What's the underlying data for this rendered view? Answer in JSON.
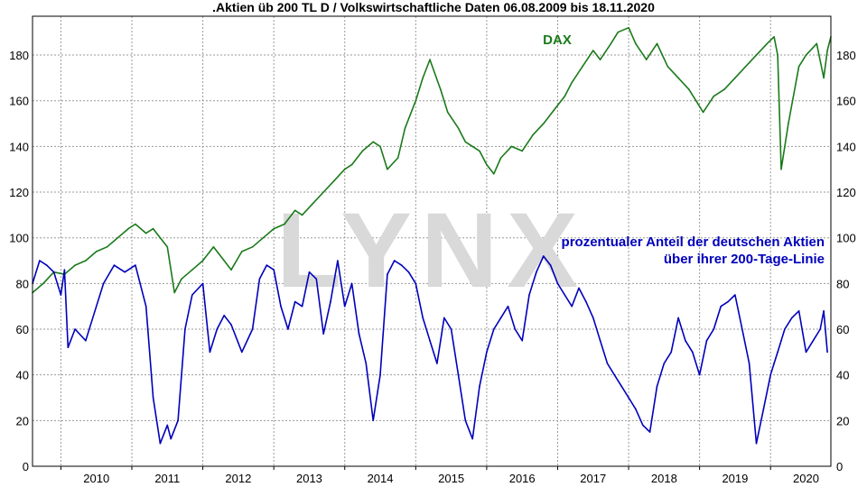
{
  "chart_data": {
    "type": "line",
    "title": ".Aktien üb 200 TL D / Volkswirtschaftliche Daten 06.08.2009 bis 18.11.2020",
    "xlabel": "",
    "ylabel": "",
    "xlim": [
      2009.6,
      2020.85
    ],
    "ylim": [
      0,
      197
    ],
    "grid": true,
    "watermark": "LYNX",
    "y_ticks": [
      0,
      20,
      40,
      60,
      80,
      100,
      120,
      140,
      160,
      180
    ],
    "x_ticks": [
      2010,
      2011,
      2012,
      2013,
      2014,
      2015,
      2016,
      2017,
      2018,
      2019,
      2020
    ],
    "colors": {
      "dax": "#1a7a1a",
      "share": "#0000bb",
      "grid": "#9a9a9a",
      "watermark": "#d9d9d9"
    },
    "series": [
      {
        "name": "DAX",
        "label": "DAX",
        "x": [
          2009.6,
          2009.75,
          2009.9,
          2010.05,
          2010.2,
          2010.35,
          2010.5,
          2010.65,
          2010.8,
          2010.95,
          2011.05,
          2011.2,
          2011.3,
          2011.4,
          2011.5,
          2011.6,
          2011.7,
          2011.85,
          2012.0,
          2012.15,
          2012.3,
          2012.4,
          2012.55,
          2012.7,
          2012.85,
          2013.0,
          2013.15,
          2013.3,
          2013.4,
          2013.55,
          2013.7,
          2013.85,
          2014.0,
          2014.1,
          2014.25,
          2014.4,
          2014.5,
          2014.6,
          2014.75,
          2014.85,
          2015.0,
          2015.1,
          2015.2,
          2015.35,
          2015.45,
          2015.6,
          2015.7,
          2015.8,
          2015.9,
          2016.0,
          2016.1,
          2016.2,
          2016.35,
          2016.5,
          2016.65,
          2016.8,
          2016.95,
          2017.1,
          2017.2,
          2017.35,
          2017.5,
          2017.6,
          2017.75,
          2017.85,
          2018.0,
          2018.1,
          2018.25,
          2018.4,
          2018.55,
          2018.7,
          2018.85,
          2018.95,
          2019.05,
          2019.2,
          2019.35,
          2019.5,
          2019.65,
          2019.8,
          2019.95,
          2020.05,
          2020.1,
          2020.15,
          2020.25,
          2020.4,
          2020.5,
          2020.65,
          2020.75,
          2020.8,
          2020.85
        ],
        "y": [
          76,
          80,
          85,
          84,
          88,
          90,
          94,
          96,
          100,
          104,
          106,
          102,
          104,
          100,
          96,
          76,
          82,
          86,
          90,
          96,
          90,
          86,
          94,
          96,
          100,
          104,
          106,
          112,
          110,
          115,
          120,
          125,
          130,
          132,
          138,
          142,
          140,
          130,
          135,
          148,
          160,
          170,
          178,
          165,
          155,
          148,
          142,
          140,
          138,
          132,
          128,
          135,
          140,
          138,
          145,
          150,
          156,
          162,
          168,
          175,
          182,
          178,
          185,
          190,
          192,
          185,
          178,
          185,
          175,
          170,
          165,
          160,
          155,
          162,
          165,
          170,
          175,
          180,
          185,
          188,
          180,
          130,
          150,
          175,
          180,
          185,
          170,
          182,
          188
        ]
      },
      {
        "name": "prozentualer Anteil der deutschen Aktien über ihrer 200-Tage-Linie",
        "label_lines": [
          "prozentualer Anteil der deutschen Aktien",
          "über ihrer 200-Tage-Linie"
        ],
        "x": [
          2009.6,
          2009.7,
          2009.8,
          2009.9,
          2010.0,
          2010.05,
          2010.1,
          2010.2,
          2010.35,
          2010.5,
          2010.6,
          2010.75,
          2010.9,
          2011.05,
          2011.2,
          2011.3,
          2011.4,
          2011.5,
          2011.55,
          2011.65,
          2011.75,
          2011.85,
          2012.0,
          2012.1,
          2012.2,
          2012.3,
          2012.4,
          2012.55,
          2012.7,
          2012.8,
          2012.9,
          2013.0,
          2013.1,
          2013.2,
          2013.3,
          2013.4,
          2013.5,
          2013.6,
          2013.7,
          2013.8,
          2013.9,
          2014.0,
          2014.1,
          2014.2,
          2014.3,
          2014.4,
          2014.5,
          2014.6,
          2014.7,
          2014.8,
          2014.9,
          2015.0,
          2015.1,
          2015.2,
          2015.3,
          2015.4,
          2015.5,
          2015.6,
          2015.7,
          2015.8,
          2015.9,
          2016.0,
          2016.1,
          2016.2,
          2016.3,
          2016.4,
          2016.5,
          2016.6,
          2016.7,
          2016.8,
          2016.9,
          2017.0,
          2017.1,
          2017.2,
          2017.3,
          2017.4,
          2017.5,
          2017.6,
          2017.7,
          2017.8,
          2017.9,
          2018.0,
          2018.1,
          2018.2,
          2018.3,
          2018.4,
          2018.5,
          2018.6,
          2018.7,
          2018.8,
          2018.9,
          2019.0,
          2019.1,
          2019.2,
          2019.3,
          2019.4,
          2019.5,
          2019.6,
          2019.7,
          2019.8,
          2019.9,
          2020.0,
          2020.05,
          2020.1,
          2020.15,
          2020.2,
          2020.3,
          2020.4,
          2020.5,
          2020.6,
          2020.7,
          2020.75,
          2020.8
        ],
        "y": [
          80,
          90,
          88,
          85,
          75,
          86,
          52,
          60,
          55,
          70,
          80,
          88,
          85,
          88,
          70,
          30,
          10,
          18,
          12,
          20,
          60,
          75,
          80,
          50,
          60,
          66,
          62,
          50,
          60,
          82,
          88,
          86,
          70,
          60,
          72,
          70,
          85,
          82,
          58,
          72,
          90,
          70,
          80,
          58,
          45,
          20,
          40,
          84,
          90,
          88,
          85,
          80,
          65,
          55,
          45,
          65,
          60,
          40,
          20,
          12,
          35,
          50,
          60,
          65,
          70,
          60,
          55,
          75,
          85,
          92,
          88,
          80,
          75,
          70,
          78,
          72,
          65,
          55,
          45,
          40,
          35,
          30,
          25,
          18,
          15,
          35,
          45,
          50,
          65,
          55,
          50,
          40,
          55,
          60,
          70,
          72,
          75,
          60,
          45,
          10,
          25,
          40,
          45,
          50,
          55,
          60,
          65,
          68,
          50,
          55,
          60,
          68,
          50
        ]
      }
    ]
  }
}
